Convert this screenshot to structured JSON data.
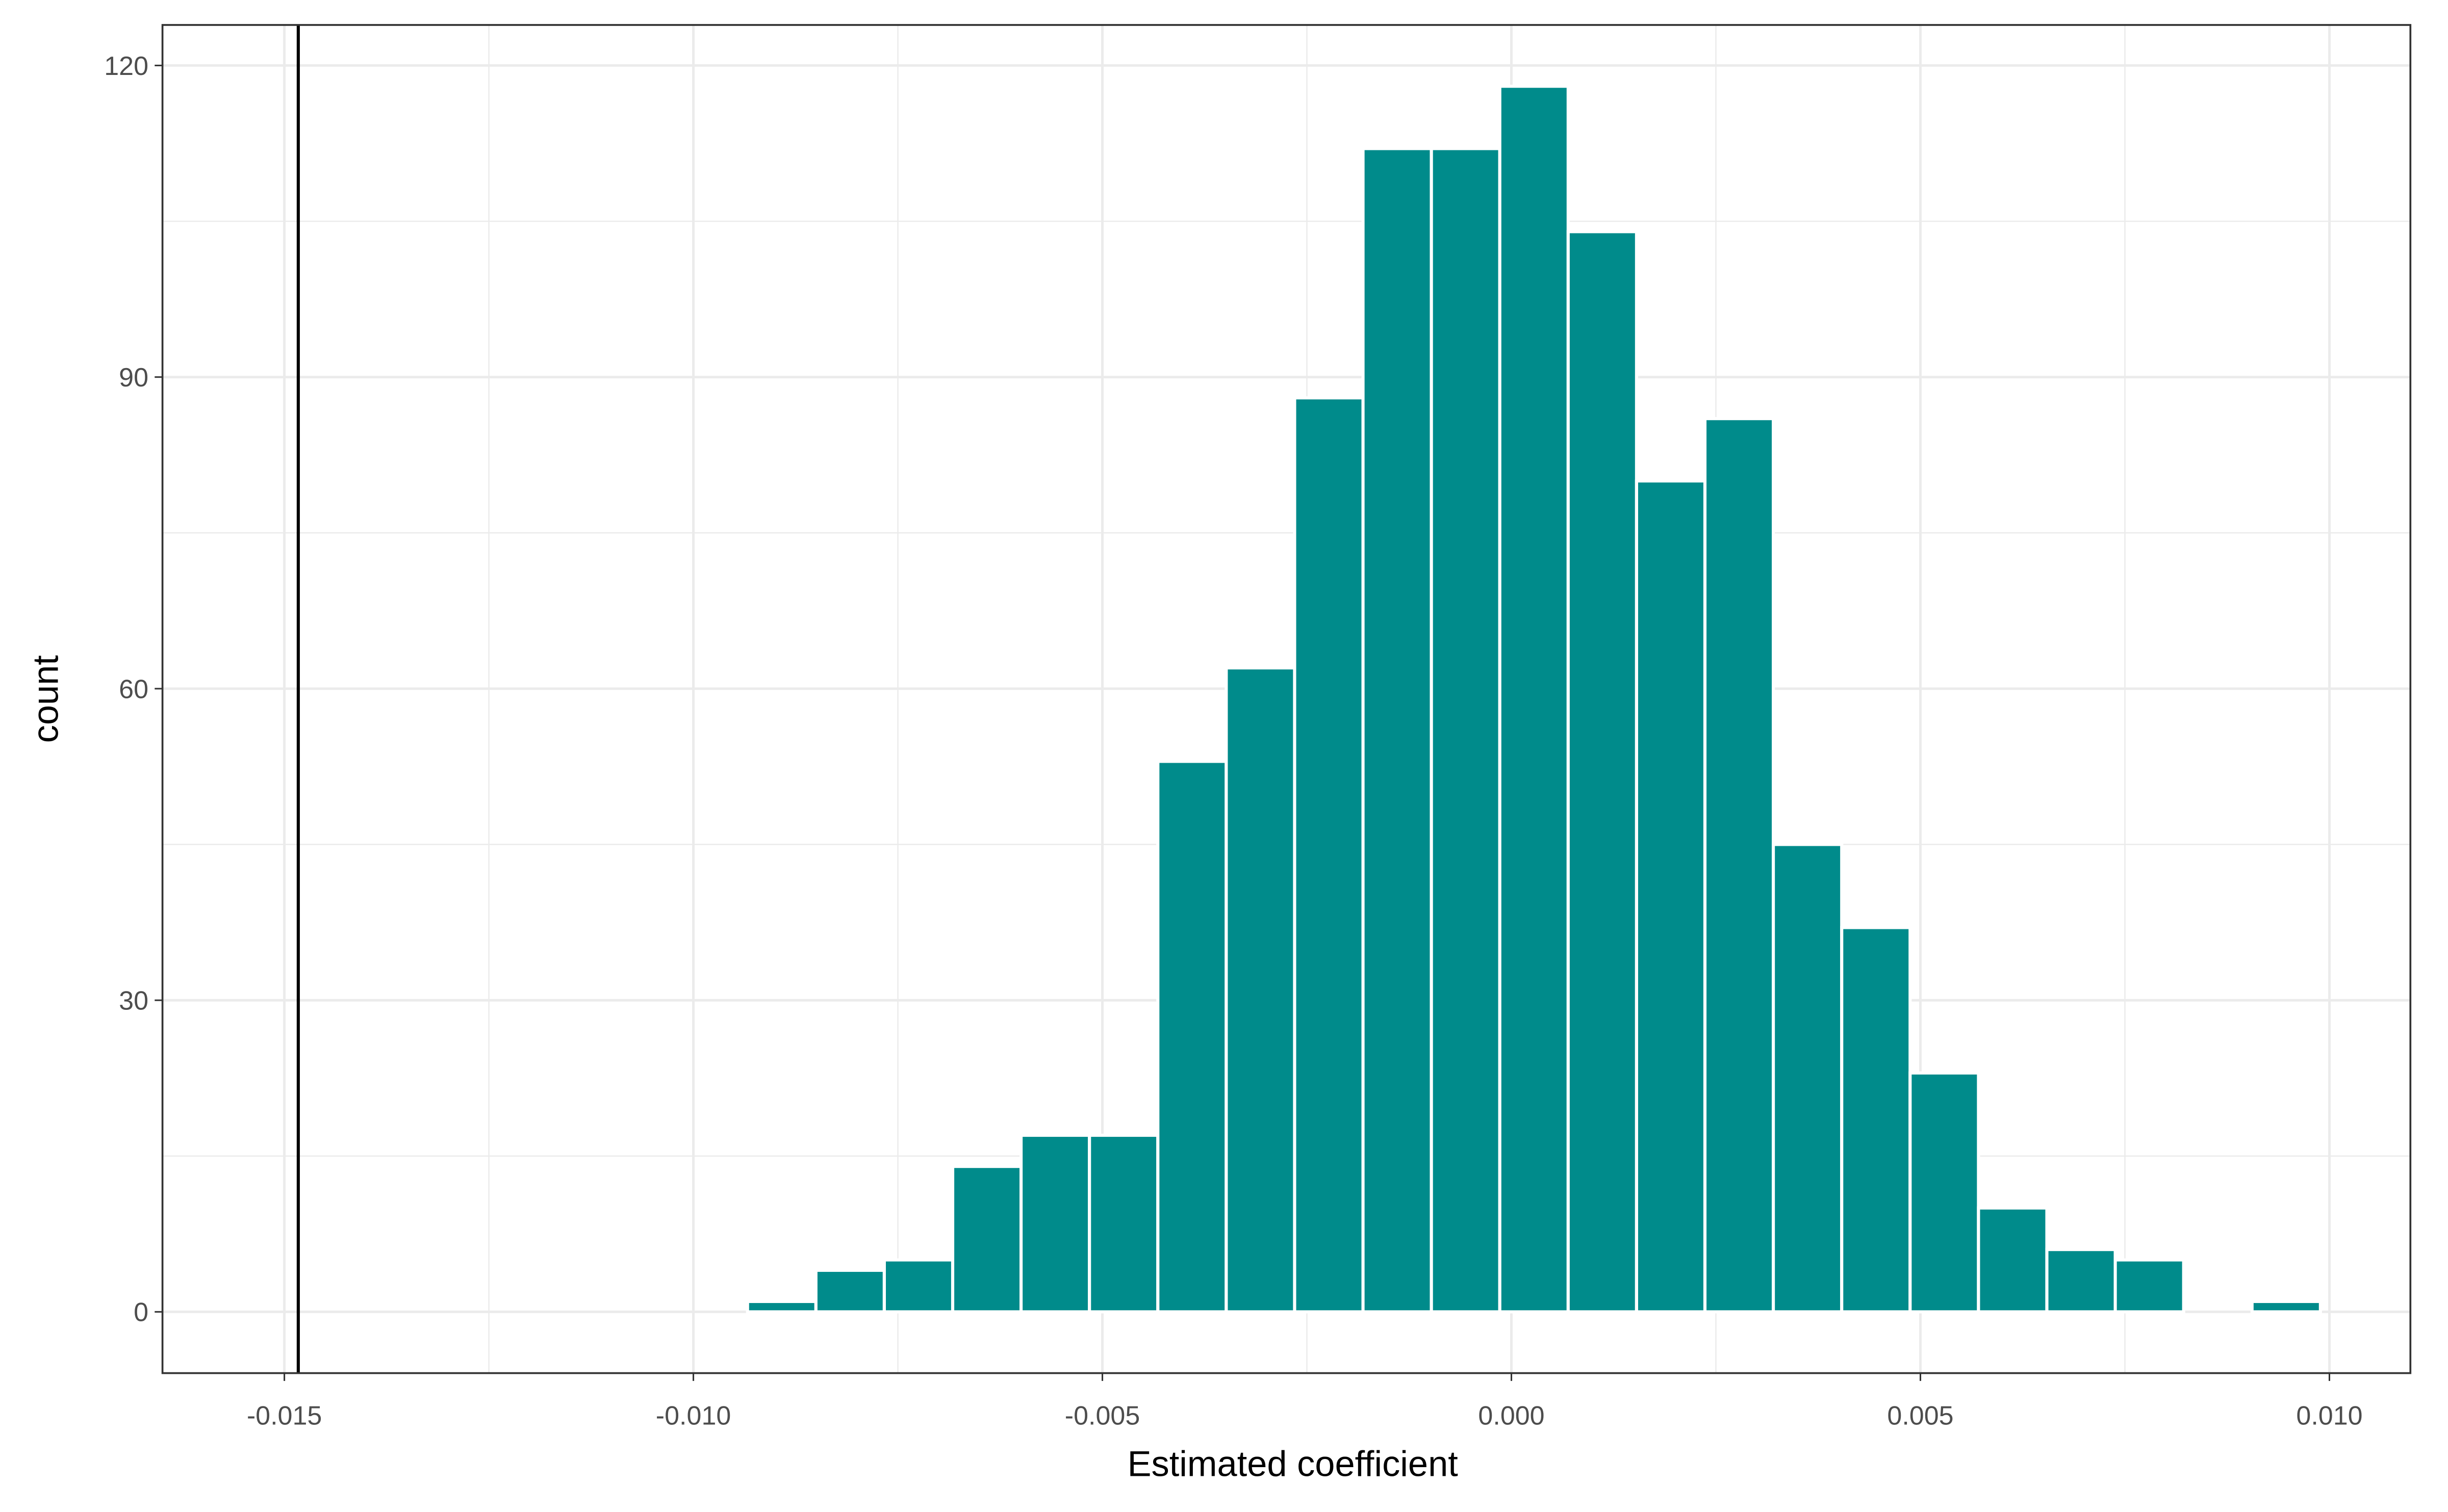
{
  "chart_data": {
    "type": "histogram",
    "x_label": "Estimated coefficient",
    "y_label": "count",
    "bins": [
      -0.01519,
      -0.014354,
      -0.013518,
      -0.012682,
      -0.011846,
      -0.01101,
      -0.010174,
      -0.009338,
      -0.008502,
      -0.007666,
      -0.00683,
      -0.005994,
      -0.005158,
      -0.004322,
      -0.003486,
      -0.00265,
      -0.001814,
      -0.000978,
      -0.000142,
      0.000694,
      0.00153,
      0.002366,
      0.003202,
      0.004038,
      0.004874,
      0.00571,
      0.006546,
      0.007382,
      0.008218,
      0.009054,
      0.00989
    ],
    "values": [
      0,
      0,
      0,
      0,
      0,
      0,
      0,
      1,
      4,
      5,
      14,
      17,
      17,
      53,
      62,
      88,
      112,
      112,
      118,
      104,
      80,
      86,
      45,
      37,
      23,
      10,
      6,
      5,
      0,
      1
    ],
    "color": "#008b8b",
    "vline": -0.01483,
    "xlim": [
      -0.01649,
      0.01099
    ],
    "ylim": [
      -5.9,
      123.9
    ],
    "xticks": [
      {
        "value": -0.015,
        "label": "-0.015"
      },
      {
        "value": -0.01,
        "label": "-0.010"
      },
      {
        "value": -0.005,
        "label": "-0.005"
      },
      {
        "value": 0,
        "label": "0.000"
      },
      {
        "value": 0.005,
        "label": "0.005"
      },
      {
        "value": 0.01,
        "label": "0.010"
      }
    ],
    "yticks": [
      0,
      30,
      60,
      90,
      120
    ],
    "x_minor_ticks": [
      -0.0125,
      -0.0075,
      -0.0025,
      0.0025,
      0.0075
    ],
    "y_minor_ticks": [
      15,
      45,
      75,
      105
    ],
    "grid": true
  }
}
